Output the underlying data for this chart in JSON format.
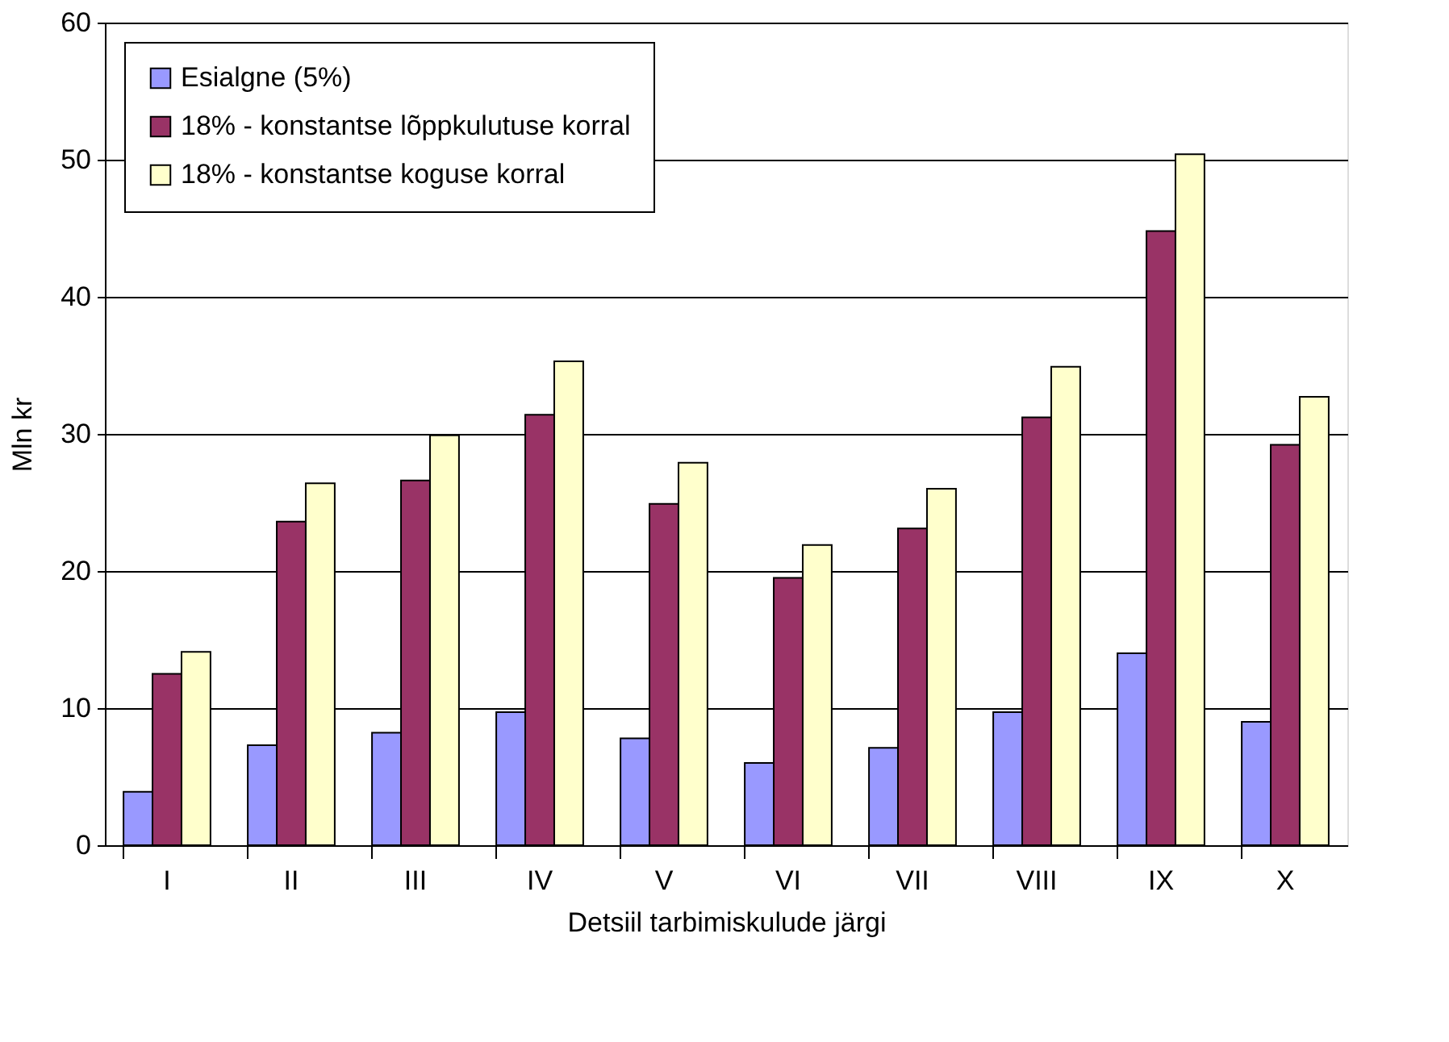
{
  "chart_data": {
    "type": "bar",
    "xlabel": "Detsiil tarbimiskulude järgi",
    "ylabel": "Mln kr",
    "categories": [
      "I",
      "II",
      "III",
      "IV",
      "V",
      "VI",
      "VII",
      "VIII",
      "IX",
      "X"
    ],
    "series": [
      {
        "name": "Esialgne (5%)",
        "color": "#9999ff",
        "values": [
          3.9,
          7.3,
          8.2,
          9.7,
          7.8,
          6.0,
          7.1,
          9.7,
          14.0,
          9.0
        ]
      },
      {
        "name": "18% - konstantse lõppkulutuse korral",
        "color": "#993366",
        "values": [
          12.5,
          23.6,
          26.6,
          31.4,
          24.9,
          19.5,
          23.1,
          31.2,
          44.8,
          29.2
        ]
      },
      {
        "name": "18% - konstantse koguse korral",
        "color": "#ffffcc",
        "values": [
          14.1,
          26.4,
          29.9,
          35.3,
          27.9,
          21.9,
          26.0,
          34.9,
          50.4,
          32.7
        ]
      }
    ],
    "ylim": [
      0,
      60
    ],
    "yticks": [
      0,
      10,
      20,
      30,
      40,
      50,
      60
    ],
    "grid": "y",
    "legend": "top left"
  }
}
